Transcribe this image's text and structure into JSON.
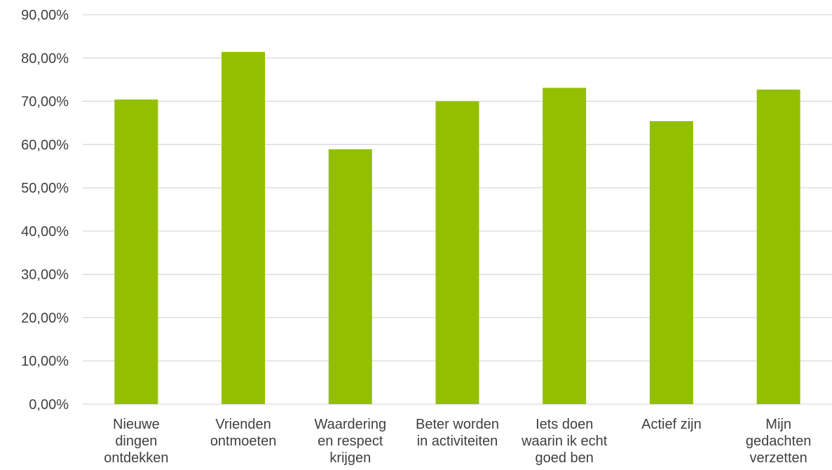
{
  "chart_data": {
    "type": "bar",
    "title": "",
    "xlabel": "",
    "ylabel": "",
    "ylim": [
      0,
      90
    ],
    "y_ticks": [
      "0,00%",
      "10,00%",
      "20,00%",
      "30,00%",
      "40,00%",
      "50,00%",
      "60,00%",
      "70,00%",
      "80,00%",
      "90,00%"
    ],
    "categories": [
      [
        "Nieuwe",
        "dingen",
        "ontdekken"
      ],
      [
        "Vrienden",
        "ontmoeten"
      ],
      [
        "Waardering",
        "en respect",
        "krijgen"
      ],
      [
        "Beter worden",
        "in activiteiten"
      ],
      [
        "Iets doen",
        "waarin ik echt",
        "goed ben"
      ],
      [
        "Actief zijn"
      ],
      [
        "Mijn",
        "gedachten",
        "verzetten"
      ]
    ],
    "values": [
      70.4,
      81.4,
      58.9,
      70.0,
      73.1,
      65.4,
      72.7
    ],
    "grid": true,
    "legend": "none",
    "bar_color": "#92c000",
    "grid_color": "#d9d9d9",
    "text_color": "#404040"
  }
}
